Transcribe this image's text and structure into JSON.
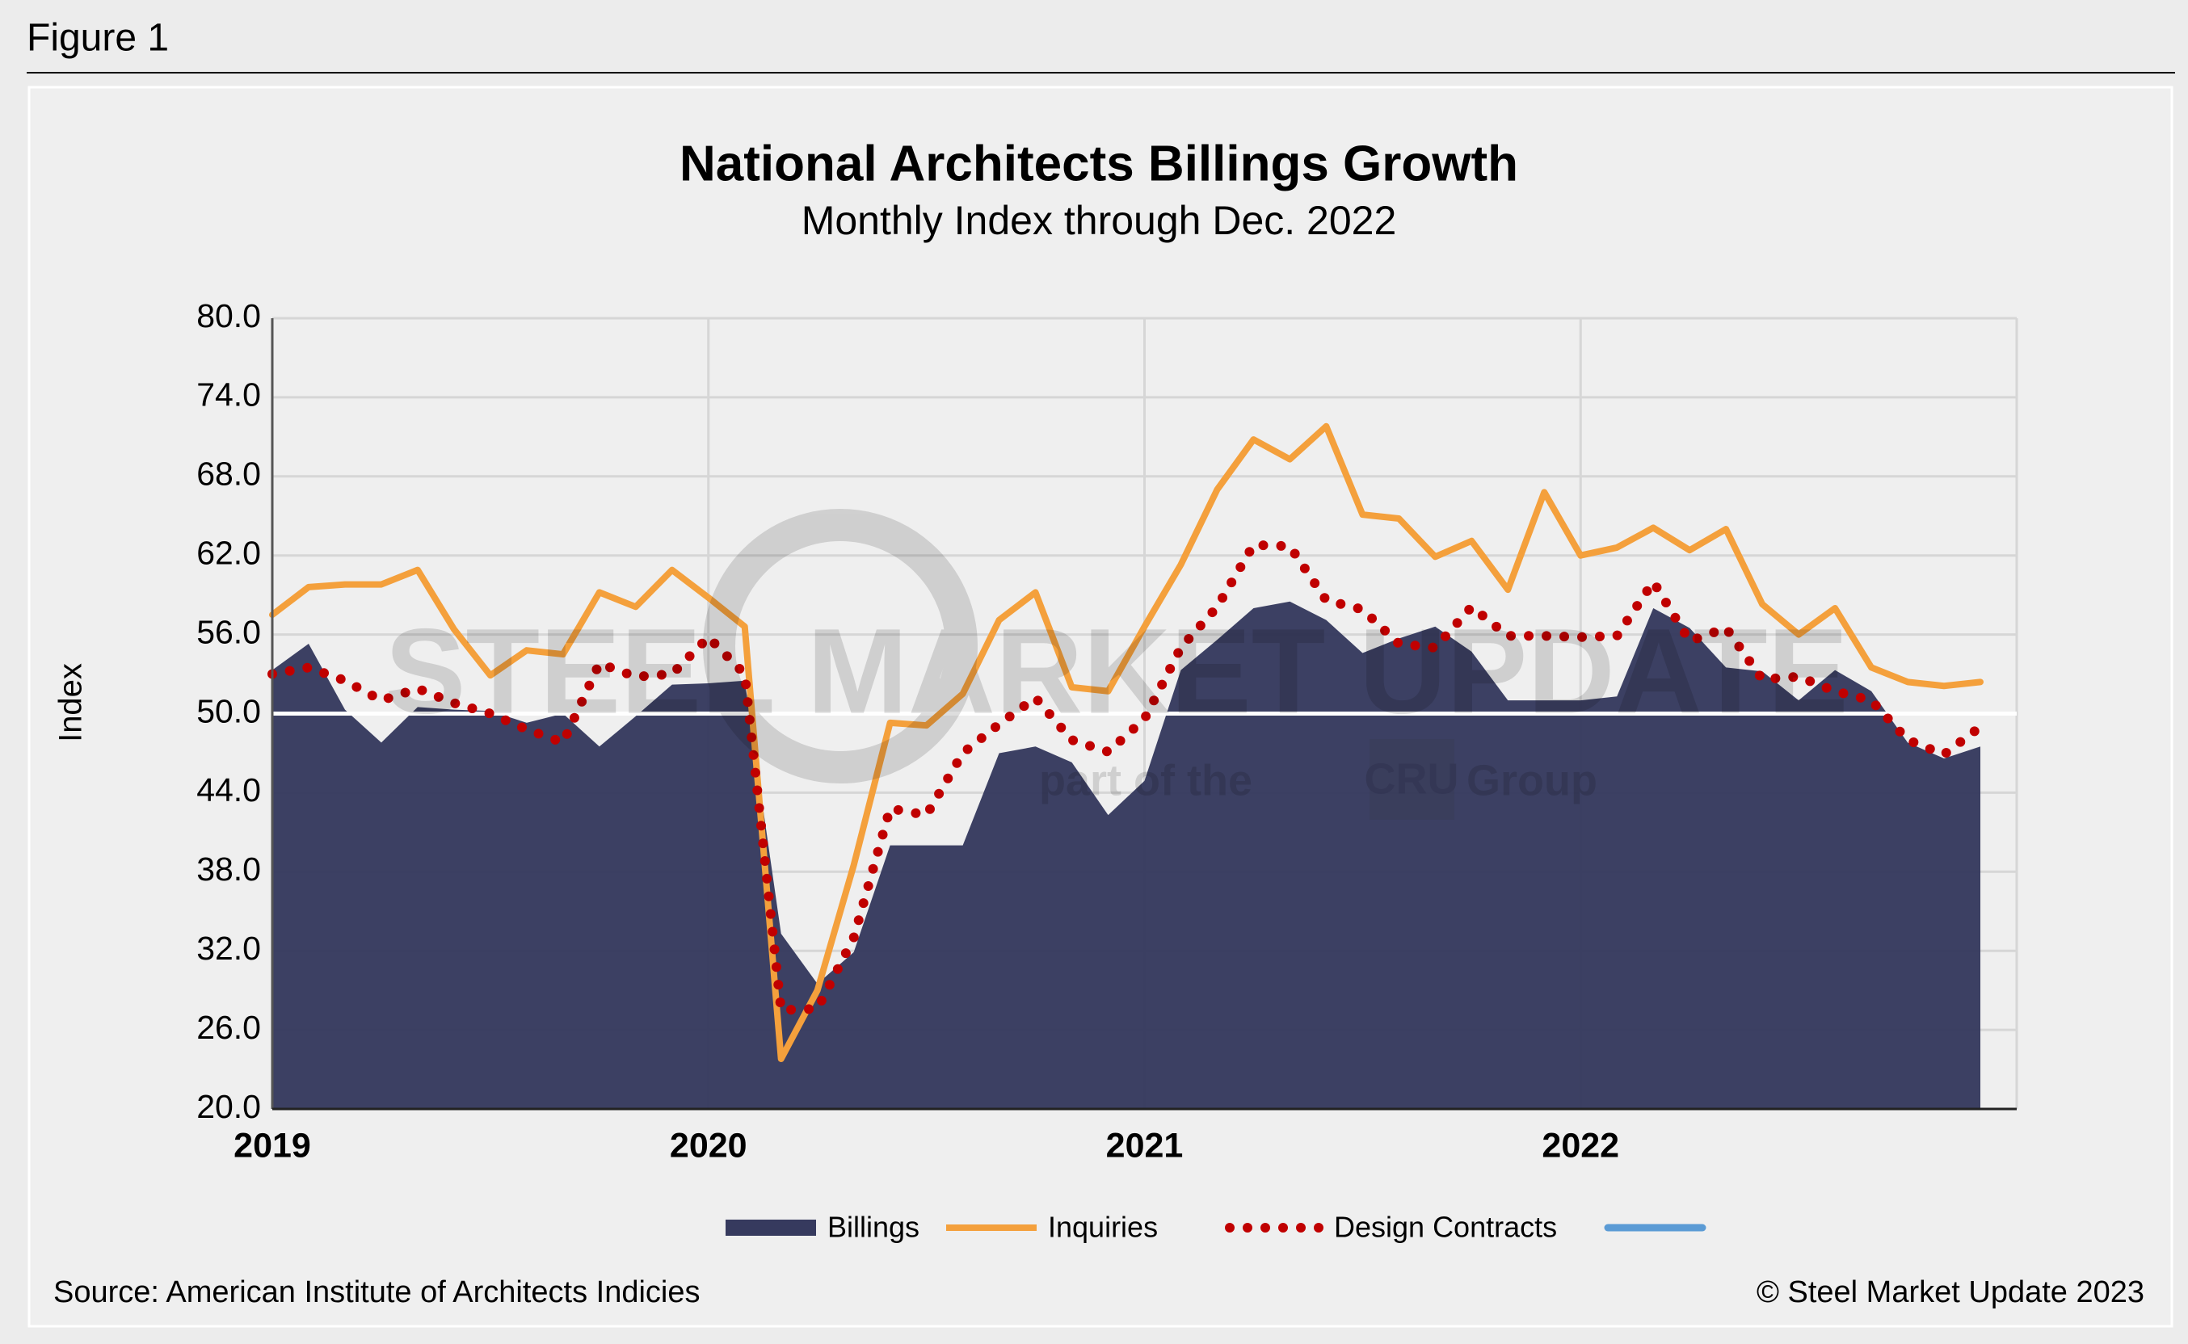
{
  "figure_label": "Figure 1",
  "source": "Source: American Institute of Architects Indicies",
  "copyright": "© Steel Market Update 2023",
  "watermark": [
    "STEEL MARKET UPDATE",
    "part of the",
    "CRU",
    "Group"
  ],
  "chart_data": {
    "type": "area-line",
    "title": "National Architects Billings Growth",
    "subtitle": "Monthly Index through Dec. 2022",
    "y_label": "Index",
    "categories": [
      "2019",
      null,
      null,
      null,
      null,
      null,
      null,
      null,
      null,
      null,
      null,
      null,
      "2020",
      null,
      null,
      null,
      null,
      null,
      null,
      null,
      null,
      null,
      null,
      null,
      "2021",
      null,
      null,
      null,
      null,
      null,
      null,
      null,
      null,
      null,
      null,
      null,
      "2022",
      null,
      null,
      null,
      null,
      null,
      null,
      null,
      null,
      null,
      null,
      null
    ],
    "ylim": [
      20,
      80
    ],
    "yticks": [
      {
        "value": 20,
        "label": "20.0"
      },
      {
        "value": 26,
        "label": "26.0"
      },
      {
        "value": 32,
        "label": "32.0"
      },
      {
        "value": 38,
        "label": "38.0"
      },
      {
        "value": 44,
        "label": "44.0"
      },
      {
        "value": 50,
        "label": "50.0"
      },
      {
        "value": 56,
        "label": "56.0"
      },
      {
        "value": 62,
        "label": "62.0"
      },
      {
        "value": 68,
        "label": "68.0"
      },
      {
        "value": 74,
        "label": "74.0"
      },
      {
        "value": 80,
        "label": "80.0"
      }
    ],
    "grid": true,
    "reference_line": 50,
    "series": [
      {
        "name": "Billings",
        "style": "area",
        "color": "#363a5e",
        "values": [
          53.3,
          55.3,
          50.3,
          47.8,
          50.5,
          50.3,
          50.2,
          49.3,
          50.0,
          47.5,
          49.8,
          52.2,
          52.3,
          52.5,
          33.3,
          29.5,
          31.9,
          40.0,
          40.0,
          40.0,
          47.0,
          47.5,
          46.3,
          42.3,
          44.9,
          53.3,
          55.6,
          58.0,
          58.5,
          57.1,
          54.6,
          55.7,
          56.6,
          54.7,
          51.0,
          51.0,
          51.0,
          51.3,
          58.0,
          56.5,
          53.5,
          53.2,
          51.0,
          53.3,
          51.7,
          47.8,
          46.6,
          47.5
        ]
      },
      {
        "name": "Inquiries",
        "style": "line",
        "color": "#f4a03c",
        "values": [
          57.5,
          59.6,
          59.8,
          59.8,
          60.9,
          56.4,
          52.9,
          54.8,
          54.5,
          59.2,
          58.1,
          60.9,
          58.8,
          56.6,
          23.8,
          29.0,
          38.5,
          49.3,
          49.1,
          51.5,
          57.1,
          59.2,
          52.0,
          51.7,
          56.6,
          61.3,
          67.0,
          70.8,
          69.3,
          71.8,
          65.1,
          64.8,
          61.9,
          63.1,
          59.4,
          66.8,
          62.0,
          62.6,
          64.1,
          62.4,
          64.0,
          58.3,
          56.0,
          58.0,
          53.5,
          52.4,
          52.1,
          52.4
        ]
      },
      {
        "name": "Design Contracts",
        "style": "dots",
        "color": "#c00000",
        "values": [
          53.0,
          53.5,
          52.5,
          51.0,
          51.9,
          50.8,
          50.0,
          48.8,
          47.8,
          53.8,
          52.8,
          53.0,
          55.8,
          53.0,
          27.5,
          27.6,
          33.0,
          42.8,
          42.3,
          47.0,
          49.2,
          51.2,
          48.0,
          47.1,
          49.6,
          55.0,
          58.1,
          62.8,
          62.7,
          58.6,
          57.9,
          55.3,
          55.0,
          58.1,
          55.9,
          55.9,
          55.8,
          55.9,
          60.0,
          55.5,
          56.5,
          52.6,
          52.8,
          51.7,
          51.0,
          48.0,
          46.9,
          49.0
        ]
      }
    ]
  }
}
